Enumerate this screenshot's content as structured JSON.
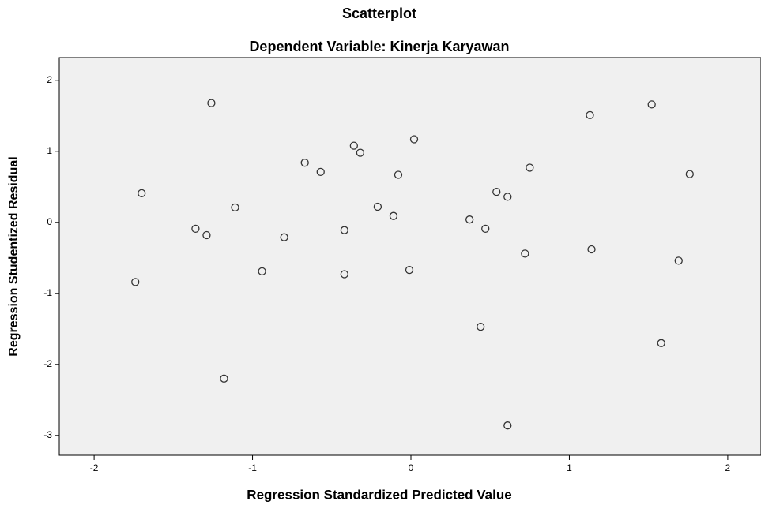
{
  "chart_data": {
    "type": "scatter",
    "title": "Scatterplot",
    "subtitle": "Dependent Variable: Kinerja Karyawan",
    "x_label": "Regression Standardized Predicted Value",
    "y_label": "Regression Studentized Residual",
    "x": [
      -1.26,
      -1.7,
      -1.74,
      -1.36,
      -1.29,
      -1.11,
      -1.18,
      -0.94,
      -0.8,
      -0.67,
      -0.57,
      -0.42,
      -0.42,
      -0.36,
      -0.32,
      -0.21,
      -0.11,
      -0.08,
      -0.01,
      0.02,
      0.37,
      0.47,
      0.54,
      0.61,
      0.44,
      0.61,
      0.72,
      0.75,
      1.13,
      1.14,
      1.52,
      1.58,
      1.69,
      1.76
    ],
    "values": [
      1.68,
      0.41,
      -0.84,
      -0.09,
      -0.18,
      0.21,
      -2.2,
      -0.69,
      -0.21,
      0.84,
      0.71,
      -0.11,
      -0.73,
      1.08,
      0.98,
      0.22,
      0.09,
      0.67,
      -0.67,
      1.17,
      0.04,
      -0.09,
      0.43,
      0.36,
      -1.47,
      -2.86,
      -0.44,
      0.77,
      1.51,
      -0.38,
      1.66,
      -1.7,
      -0.54,
      0.68
    ],
    "color": "#333333",
    "plot_background": "#f0f0f0",
    "xlim": [
      -2.22,
      2.21
    ],
    "ylim": [
      -3.28,
      2.32
    ],
    "xticks": [
      -2,
      -1,
      0,
      1,
      2
    ],
    "yticks": [
      -3,
      -2,
      -1,
      0,
      1,
      2
    ]
  }
}
